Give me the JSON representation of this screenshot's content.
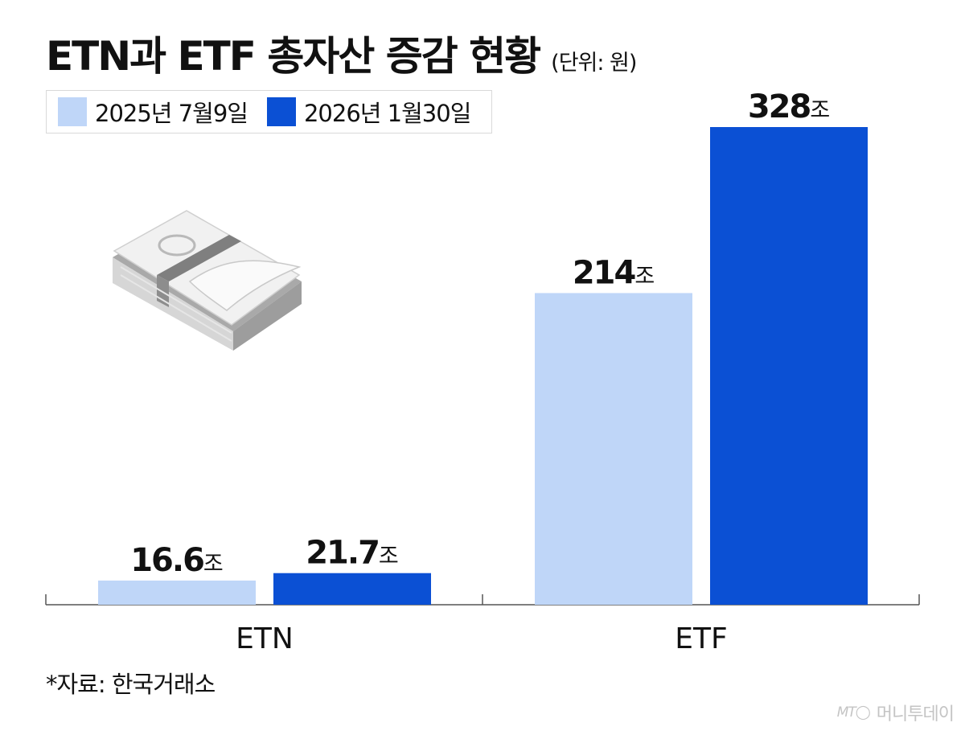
{
  "title": "ETN과 ETF 총자산 증감 현황",
  "unit_label": "(단위: 원)",
  "legend": [
    {
      "label": "2025년 7월9일",
      "color": "#bfd6f8"
    },
    {
      "label": "2026년 1월30일",
      "color": "#0b50d4"
    }
  ],
  "source": "*자료: 한국거래소",
  "watermark": {
    "brand": "머니투데이",
    "icon": "mt-logo-icon"
  },
  "illustration": "money-stack-icon",
  "chart_data": {
    "type": "bar",
    "categories": [
      "ETN",
      "ETF"
    ],
    "series": [
      {
        "name": "2025년 7월9일",
        "values": [
          16.6,
          214
        ],
        "labels": [
          "16.6",
          "214"
        ],
        "color": "#bfd6f8"
      },
      {
        "name": "2026년 1월30일",
        "values": [
          21.7,
          328
        ],
        "labels": [
          "21.7",
          "328"
        ],
        "color": "#0b50d4"
      }
    ],
    "value_suffix": "조",
    "ylim": [
      0,
      328
    ],
    "grid": false,
    "legend_position": "top-left"
  }
}
